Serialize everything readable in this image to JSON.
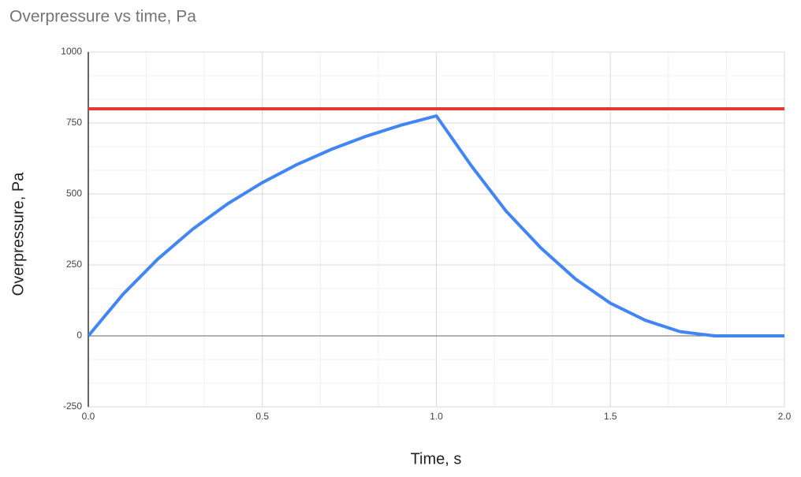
{
  "chart_data": {
    "type": "line",
    "title": "Overpressure vs time, Pa",
    "x_label": "Time, s",
    "y_label": "Overpressure, Pa",
    "x": [
      0,
      0.1,
      0.2,
      0.3,
      0.4,
      0.5,
      0.6,
      0.7,
      0.8,
      0.9,
      1.0,
      1.1,
      1.2,
      1.3,
      1.4,
      1.5,
      1.6,
      1.7,
      1.8,
      1.9,
      2.0
    ],
    "series": [
      {
        "color": "#e53935",
        "values": [
          800,
          800,
          800,
          800,
          800,
          800,
          800,
          800,
          800,
          800,
          800,
          800,
          800,
          800,
          800,
          800,
          800,
          800,
          800,
          800,
          800
        ]
      },
      {
        "color": "#4285f4",
        "values": [
          0,
          147,
          271,
          376,
          465,
          540,
          604,
          658,
          704,
          743,
          775,
          600,
          440,
          310,
          200,
          115,
          55,
          15,
          0,
          0,
          0
        ]
      }
    ],
    "xlim": [
      0,
      2
    ],
    "ylim": [
      -250,
      1000
    ],
    "xticks": [
      {
        "value": 0,
        "label": "0.0"
      },
      0.5,
      {
        "value": 1,
        "label": "1.0"
      },
      1.5,
      {
        "value": 2,
        "label": "2.0"
      }
    ],
    "yticks": [
      -250,
      0,
      250,
      500,
      750,
      1000
    ],
    "grid": true,
    "minor_grid_count": 2
  }
}
